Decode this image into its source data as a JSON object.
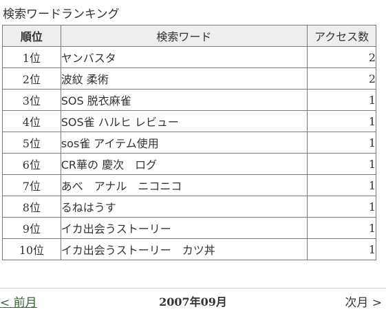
{
  "title": "検索ワードランキング",
  "table": {
    "headers": {
      "rank": "順位",
      "word": "検索ワード",
      "count": "アクセス数"
    },
    "rows": [
      {
        "rank": "1位",
        "word": "ヤンバスタ",
        "count": "2"
      },
      {
        "rank": "2位",
        "word": "波紋 柔術",
        "count": "2"
      },
      {
        "rank": "3位",
        "word": "SOS 脱衣麻雀",
        "count": "1"
      },
      {
        "rank": "4位",
        "word": "SOS雀 ハルヒ レビュー",
        "count": "1"
      },
      {
        "rank": "5位",
        "word": "sos雀 アイテム使用",
        "count": "1"
      },
      {
        "rank": "6位",
        "word": "CR華の 慶次　ログ",
        "count": "1"
      },
      {
        "rank": "7位",
        "word": "あべ　アナル　ニコニコ",
        "count": "1"
      },
      {
        "rank": "8位",
        "word": "るねはうす",
        "count": "1"
      },
      {
        "rank": "9位",
        "word": "イカ出会うストーリー",
        "count": "1"
      },
      {
        "rank": "10位",
        "word": "イカ出会うストーリー　カツ丼",
        "count": "1"
      }
    ]
  },
  "nav": {
    "prev": "< 前月",
    "month": "2007年09月",
    "next": "次月 >"
  }
}
